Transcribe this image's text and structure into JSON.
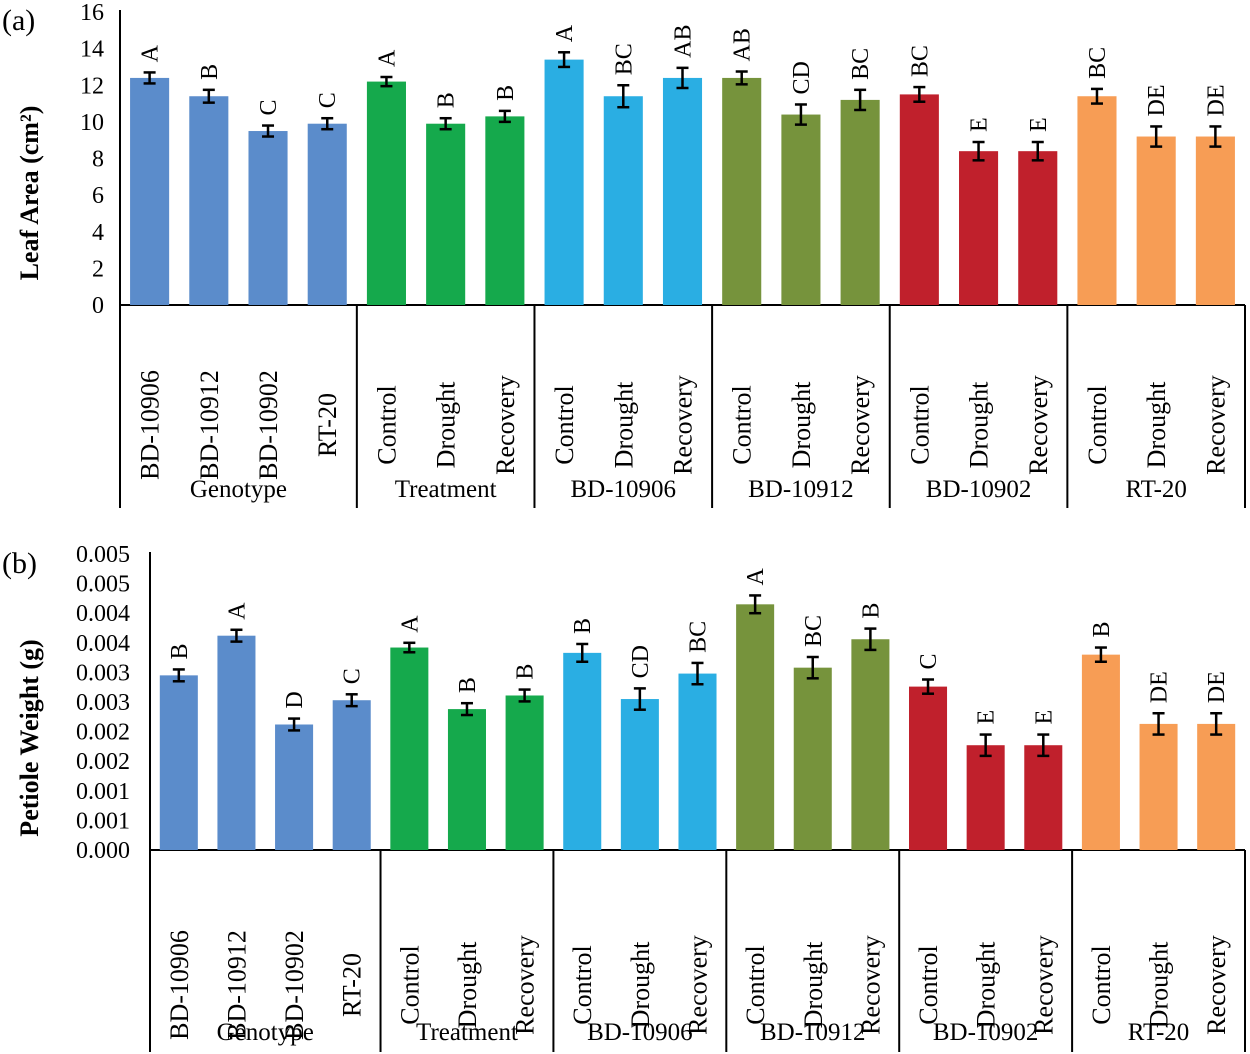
{
  "chart_data": [
    {
      "type": "bar",
      "panel_label": "(a)",
      "ylabel": "Leaf Area (cm²)",
      "ylim": [
        0,
        16
      ],
      "yticks": [
        "0",
        "2",
        "4",
        "6",
        "8",
        "10",
        "12",
        "14",
        "16"
      ],
      "colors": {
        "genotype": "#5b8ccb",
        "treatment": "#15a94c",
        "bd10906": "#2aaee3",
        "bd10912": "#76933c",
        "bd10902": "#c0202c",
        "rt20": "#f79d55"
      },
      "groups": [
        {
          "name": "Genotype",
          "color_key": "genotype",
          "bars": [
            {
              "label": "BD-10906",
              "value": 12.4,
              "error": 0.3,
              "sig": "A"
            },
            {
              "label": "BD-10912",
              "value": 11.4,
              "error": 0.35,
              "sig": "B"
            },
            {
              "label": "BD-10902",
              "value": 9.5,
              "error": 0.3,
              "sig": "C"
            },
            {
              "label": "RT-20",
              "value": 9.9,
              "error": 0.3,
              "sig": "C"
            }
          ]
        },
        {
          "name": "Treatment",
          "color_key": "treatment",
          "bars": [
            {
              "label": "Control",
              "value": 12.2,
              "error": 0.25,
              "sig": "A"
            },
            {
              "label": "Drought",
              "value": 9.9,
              "error": 0.3,
              "sig": "B"
            },
            {
              "label": "Recovery",
              "value": 10.3,
              "error": 0.3,
              "sig": "B"
            }
          ]
        },
        {
          "name": "BD-10906",
          "color_key": "bd10906",
          "bars": [
            {
              "label": "Control",
              "value": 13.4,
              "error": 0.4,
              "sig": "A"
            },
            {
              "label": "Drought",
              "value": 11.4,
              "error": 0.6,
              "sig": "BC"
            },
            {
              "label": "Recovery",
              "value": 12.4,
              "error": 0.55,
              "sig": "AB"
            }
          ]
        },
        {
          "name": "BD-10912",
          "color_key": "bd10912",
          "bars": [
            {
              "label": "Control",
              "value": 12.4,
              "error": 0.35,
              "sig": "AB"
            },
            {
              "label": "Drought",
              "value": 10.4,
              "error": 0.55,
              "sig": "CD"
            },
            {
              "label": "Recovery",
              "value": 11.2,
              "error": 0.55,
              "sig": "BC"
            }
          ]
        },
        {
          "name": "BD-10902",
          "color_key": "bd10902",
          "bars": [
            {
              "label": "Control",
              "value": 11.5,
              "error": 0.4,
              "sig": "BC"
            },
            {
              "label": "Drought",
              "value": 8.4,
              "error": 0.5,
              "sig": "E"
            },
            {
              "label": "Recovery",
              "value": 8.4,
              "error": 0.5,
              "sig": "E"
            }
          ]
        },
        {
          "name": "RT-20",
          "color_key": "rt20",
          "bars": [
            {
              "label": "Control",
              "value": 11.4,
              "error": 0.4,
              "sig": "BC"
            },
            {
              "label": "Drought",
              "value": 9.2,
              "error": 0.55,
              "sig": "DE"
            },
            {
              "label": "Recovery",
              "value": 9.2,
              "error": 0.55,
              "sig": "DE"
            }
          ]
        }
      ]
    },
    {
      "type": "bar",
      "panel_label": "(b)",
      "ylabel": "Petiole Weight  (g)",
      "ylim": [
        0,
        0.005
      ],
      "yticks": [
        "0.000",
        "0.001",
        "0.001",
        "0.002",
        "0.002",
        "0.003",
        "0.003",
        "0.004",
        "0.004",
        "0.005",
        "0.005"
      ],
      "colors": {
        "genotype": "#5b8ccb",
        "treatment": "#15a94c",
        "bd10906": "#2aaee3",
        "bd10912": "#76933c",
        "bd10902": "#c0202c",
        "rt20": "#f79d55"
      },
      "groups": [
        {
          "name": "Genotype",
          "color_key": "genotype",
          "bars": [
            {
              "label": "BD-10906",
              "value": 0.00295,
              "error": 0.0001,
              "sig": "B"
            },
            {
              "label": "BD-10912",
              "value": 0.00362,
              "error": 0.0001,
              "sig": "A"
            },
            {
              "label": "BD-10902",
              "value": 0.00212,
              "error": 0.0001,
              "sig": "D"
            },
            {
              "label": "RT-20",
              "value": 0.00253,
              "error": 0.0001,
              "sig": "C"
            }
          ]
        },
        {
          "name": "Treatment",
          "color_key": "treatment",
          "bars": [
            {
              "label": "Control",
              "value": 0.00342,
              "error": 8e-05,
              "sig": "A"
            },
            {
              "label": "Drought",
              "value": 0.00238,
              "error": 0.0001,
              "sig": "B"
            },
            {
              "label": "Recovery",
              "value": 0.00261,
              "error": 0.0001,
              "sig": "B"
            }
          ]
        },
        {
          "name": "BD-10906",
          "color_key": "bd10906",
          "bars": [
            {
              "label": "Control",
              "value": 0.00333,
              "error": 0.00015,
              "sig": "B"
            },
            {
              "label": "Drought",
              "value": 0.00255,
              "error": 0.00018,
              "sig": "CD"
            },
            {
              "label": "Recovery",
              "value": 0.00298,
              "error": 0.00018,
              "sig": "BC"
            }
          ]
        },
        {
          "name": "BD-10912",
          "color_key": "bd10912",
          "bars": [
            {
              "label": "Control",
              "value": 0.00415,
              "error": 0.00015,
              "sig": "A"
            },
            {
              "label": "Drought",
              "value": 0.00308,
              "error": 0.00018,
              "sig": "BC"
            },
            {
              "label": "Recovery",
              "value": 0.00356,
              "error": 0.00018,
              "sig": "B"
            }
          ]
        },
        {
          "name": "BD-10902",
          "color_key": "bd10902",
          "bars": [
            {
              "label": "Control",
              "value": 0.00276,
              "error": 0.00012,
              "sig": "C"
            },
            {
              "label": "Drought",
              "value": 0.00177,
              "error": 0.00018,
              "sig": "E"
            },
            {
              "label": "Recovery",
              "value": 0.00177,
              "error": 0.00018,
              "sig": "E"
            }
          ]
        },
        {
          "name": "RT-20",
          "color_key": "rt20",
          "bars": [
            {
              "label": "Control",
              "value": 0.0033,
              "error": 0.00012,
              "sig": "B"
            },
            {
              "label": "Drought",
              "value": 0.00213,
              "error": 0.00018,
              "sig": "DE"
            },
            {
              "label": "Recovery",
              "value": 0.00213,
              "error": 0.00018,
              "sig": "DE"
            }
          ]
        }
      ]
    }
  ]
}
